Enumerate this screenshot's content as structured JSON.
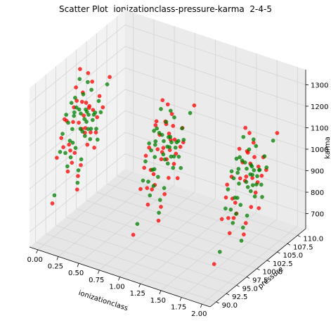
{
  "chart_data": {
    "type": "scatter",
    "title": "Scatter Plot  ionizationclass-pressure-karma  2-4-5",
    "xlabel": "ionizationclass",
    "ylabel": "pressure",
    "zlabel": "karma",
    "xlim": [
      -0.1,
      2.1
    ],
    "ylim": [
      88.5,
      112.0
    ],
    "zlim": [
      630,
      1370
    ],
    "x_ticks": [
      "0.00",
      "0.25",
      "0.50",
      "0.75",
      "1.00",
      "1.25",
      "1.50",
      "1.75",
      "2.00"
    ],
    "y_ticks": [
      "90.0",
      "92.5",
      "95.0",
      "97.5",
      "100.0",
      "102.5",
      "105.0",
      "107.5",
      "110.0"
    ],
    "z_ticks": [
      "700",
      "800",
      "900",
      "1000",
      "1100",
      "1200",
      "1300"
    ],
    "grid": true,
    "projection": "3d",
    "series": [
      {
        "color": "#ff0000",
        "points": [
          [
            0,
            98.6,
            1065
          ],
          [
            0,
            101.2,
            1102
          ],
          [
            0,
            96.5,
            968
          ],
          [
            0,
            103.1,
            1021
          ],
          [
            0,
            99.4,
            1150
          ],
          [
            0,
            94.8,
            1010
          ],
          [
            0,
            100.7,
            930
          ],
          [
            0,
            97.9,
            1240
          ],
          [
            0,
            102.4,
            890
          ],
          [
            0,
            95.6,
            1120
          ],
          [
            0,
            99.8,
            1080
          ],
          [
            0,
            98.1,
            1175
          ],
          [
            0,
            104.5,
            1045
          ],
          [
            0,
            93.2,
            985
          ],
          [
            0,
            100.2,
            1015
          ],
          [
            0,
            101.9,
            1205
          ],
          [
            0,
            96.9,
            905
          ],
          [
            0,
            99.1,
            860
          ],
          [
            0,
            97.2,
            1090
          ],
          [
            0,
            102.8,
            955
          ],
          [
            0,
            95.1,
            1135
          ],
          [
            0,
            100.9,
            1260
          ],
          [
            0,
            98.4,
            820
          ],
          [
            0,
            103.7,
            1110
          ],
          [
            0,
            96.2,
            1000
          ],
          [
            0,
            99.6,
            1190
          ],
          [
            0,
            101.5,
            975
          ],
          [
            0,
            94.3,
            1060
          ],
          [
            0,
            97.6,
            940
          ],
          [
            0,
            100.4,
            1130
          ],
          [
            0,
            92.1,
            790
          ],
          [
            0,
            106.2,
            1160
          ],
          [
            0,
            98.9,
            1310
          ],
          [
            0,
            95.9,
            880
          ],
          [
            0,
            102.1,
            1070
          ],
          [
            0,
            99.3,
            1025
          ],
          [
            0,
            101.1,
            1095
          ],
          [
            0,
            97.4,
            1155
          ],
          [
            0,
            100.1,
            995
          ],
          [
            0,
            98.2,
            760
          ],
          [
            1,
            98.9,
            1050
          ],
          [
            1,
            101.6,
            1130
          ],
          [
            1,
            96.8,
            980
          ],
          [
            1,
            103.4,
            1005
          ],
          [
            1,
            99.7,
            1180
          ],
          [
            1,
            95.2,
            940
          ],
          [
            1,
            100.5,
            905
          ],
          [
            1,
            97.5,
            1215
          ],
          [
            1,
            102.7,
            870
          ],
          [
            1,
            94.9,
            1095
          ],
          [
            1,
            99.2,
            1065
          ],
          [
            1,
            98.3,
            1140
          ],
          [
            1,
            104.1,
            1015
          ],
          [
            1,
            93.6,
            960
          ],
          [
            1,
            100.8,
            1030
          ],
          [
            1,
            101.3,
            1190
          ],
          [
            1,
            96.4,
            915
          ],
          [
            1,
            99.5,
            845
          ],
          [
            1,
            97.8,
            1080
          ],
          [
            1,
            102.3,
            990
          ],
          [
            1,
            95.7,
            1120
          ],
          [
            1,
            100.3,
            1250
          ],
          [
            1,
            98.6,
            800
          ],
          [
            1,
            103.9,
            1085
          ],
          [
            1,
            96.1,
            1010
          ],
          [
            1,
            99.9,
            1165
          ],
          [
            1,
            101.8,
            950
          ],
          [
            1,
            94.5,
            1045
          ],
          [
            1,
            97.1,
            925
          ],
          [
            1,
            100.6,
            1110
          ],
          [
            1,
            91.8,
            775
          ],
          [
            1,
            106.8,
            1145
          ],
          [
            1,
            99.0,
            1290
          ],
          [
            1,
            95.4,
            860
          ],
          [
            1,
            102.0,
            1060
          ],
          [
            1,
            98.7,
            1020
          ],
          [
            1,
            101.0,
            1075
          ],
          [
            1,
            97.3,
            1200
          ],
          [
            1,
            100.0,
            1000
          ],
          [
            1,
            98.0,
            745
          ],
          [
            2,
            99.1,
            1040
          ],
          [
            2,
            101.4,
            1115
          ],
          [
            2,
            96.7,
            975
          ],
          [
            2,
            103.2,
            1000
          ],
          [
            2,
            99.6,
            1170
          ],
          [
            2,
            95.0,
            930
          ],
          [
            2,
            100.6,
            895
          ],
          [
            2,
            97.7,
            1210
          ],
          [
            2,
            102.5,
            860
          ],
          [
            2,
            94.7,
            1090
          ],
          [
            2,
            99.4,
            1055
          ],
          [
            2,
            98.5,
            1135
          ],
          [
            2,
            104.3,
            1010
          ],
          [
            2,
            93.4,
            950
          ],
          [
            2,
            100.9,
            1025
          ],
          [
            2,
            101.2,
            1185
          ],
          [
            2,
            96.3,
            910
          ],
          [
            2,
            99.3,
            840
          ],
          [
            2,
            97.9,
            1070
          ],
          [
            2,
            102.2,
            985
          ],
          [
            2,
            95.8,
            1110
          ],
          [
            2,
            100.2,
            1245
          ],
          [
            2,
            98.8,
            795
          ],
          [
            2,
            103.6,
            1080
          ],
          [
            2,
            96.0,
            1005
          ],
          [
            2,
            99.8,
            1160
          ],
          [
            2,
            101.7,
            945
          ],
          [
            2,
            94.4,
            1035
          ],
          [
            2,
            97.0,
            920
          ],
          [
            2,
            100.4,
            1100
          ],
          [
            2,
            91.5,
            770
          ],
          [
            2,
            107.0,
            1140
          ],
          [
            2,
            99.2,
            1285
          ],
          [
            2,
            95.3,
            855
          ],
          [
            2,
            102.4,
            1055
          ]
        ]
      },
      {
        "color": "#008000",
        "points": [
          [
            0,
            99.0,
            1030
          ],
          [
            0,
            100.6,
            1085
          ],
          [
            0,
            97.1,
            995
          ],
          [
            0,
            102.6,
            1050
          ],
          [
            0,
            98.7,
            1125
          ],
          [
            0,
            95.3,
            975
          ],
          [
            0,
            101.4,
            945
          ],
          [
            0,
            97.7,
            1195
          ],
          [
            0,
            103.2,
            915
          ],
          [
            0,
            96.0,
            1105
          ],
          [
            0,
            100.0,
            1060
          ],
          [
            0,
            98.0,
            1145
          ],
          [
            0,
            104.0,
            1030
          ],
          [
            0,
            94.0,
            1000
          ],
          [
            0,
            100.5,
            1040
          ],
          [
            0,
            101.7,
            1170
          ],
          [
            0,
            96.6,
            935
          ],
          [
            0,
            99.2,
            885
          ],
          [
            0,
            97.4,
            1115
          ],
          [
            0,
            102.9,
            970
          ],
          [
            0,
            95.5,
            1150
          ],
          [
            0,
            100.8,
            1220
          ],
          [
            0,
            98.5,
            845
          ],
          [
            0,
            103.5,
            1090
          ],
          [
            0,
            96.4,
            1015
          ],
          [
            0,
            99.7,
            1180
          ],
          [
            0,
            101.6,
            990
          ],
          [
            0,
            94.6,
            1075
          ],
          [
            0,
            97.8,
            960
          ],
          [
            0,
            100.3,
            1100
          ],
          [
            0,
            92.6,
            820
          ],
          [
            0,
            105.6,
            1135
          ],
          [
            0,
            98.8,
            1265
          ],
          [
            0,
            95.8,
            905
          ],
          [
            0,
            102.3,
            1045
          ],
          [
            0,
            99.5,
            1010
          ],
          [
            0,
            101.0,
            1065
          ],
          [
            0,
            97.5,
            1130
          ],
          [
            0,
            100.1,
            980
          ],
          [
            0,
            98.3,
            790
          ],
          [
            0,
            96.8,
            1185
          ],
          [
            0,
            100.9,
            1000
          ],
          [
            0,
            99.1,
            1100
          ],
          [
            0,
            102.0,
            1025
          ],
          [
            0,
            97.0,
            1060
          ],
          [
            1,
            99.2,
            1035
          ],
          [
            1,
            100.9,
            1090
          ],
          [
            1,
            97.0,
            1000
          ],
          [
            1,
            102.9,
            1040
          ],
          [
            1,
            98.9,
            1130
          ],
          [
            1,
            95.5,
            965
          ],
          [
            1,
            101.6,
            935
          ],
          [
            1,
            97.6,
            1180
          ],
          [
            1,
            103.5,
            905
          ],
          [
            1,
            96.2,
            1100
          ],
          [
            1,
            100.2,
            1055
          ],
          [
            1,
            98.2,
            1150
          ],
          [
            1,
            104.2,
            1025
          ],
          [
            1,
            94.2,
            990
          ],
          [
            1,
            100.7,
            1045
          ],
          [
            1,
            101.9,
            1165
          ],
          [
            1,
            96.8,
            925
          ],
          [
            1,
            99.4,
            875
          ],
          [
            1,
            97.2,
            1110
          ],
          [
            1,
            103.0,
            965
          ],
          [
            1,
            95.7,
            1140
          ],
          [
            1,
            101.0,
            1210
          ],
          [
            1,
            98.4,
            835
          ],
          [
            1,
            103.8,
            1085
          ],
          [
            1,
            96.5,
            1005
          ],
          [
            1,
            99.9,
            1175
          ],
          [
            1,
            101.8,
            985
          ],
          [
            1,
            94.8,
            1070
          ],
          [
            1,
            97.9,
            950
          ],
          [
            1,
            100.5,
            1095
          ],
          [
            1,
            92.8,
            810
          ],
          [
            1,
            105.8,
            1125
          ],
          [
            1,
            98.6,
            1255
          ],
          [
            1,
            95.9,
            895
          ],
          [
            1,
            102.5,
            1040
          ],
          [
            1,
            99.6,
            1005
          ],
          [
            1,
            101.2,
            1060
          ],
          [
            1,
            97.3,
            1125
          ],
          [
            1,
            100.3,
            975
          ],
          [
            1,
            98.1,
            780
          ],
          [
            1,
            96.9,
            1180
          ],
          [
            1,
            101.1,
            995
          ],
          [
            1,
            99.3,
            1095
          ],
          [
            1,
            102.2,
            1020
          ],
          [
            1,
            97.1,
            1055
          ],
          [
            2,
            99.4,
            1030
          ],
          [
            2,
            100.8,
            1080
          ],
          [
            2,
            97.2,
            990
          ],
          [
            2,
            102.7,
            1035
          ],
          [
            2,
            99.1,
            1125
          ],
          [
            2,
            95.6,
            960
          ],
          [
            2,
            101.5,
            930
          ],
          [
            2,
            97.8,
            1170
          ],
          [
            2,
            103.3,
            900
          ],
          [
            2,
            96.3,
            1095
          ],
          [
            2,
            100.4,
            1050
          ],
          [
            2,
            98.4,
            1145
          ],
          [
            2,
            104.4,
            1020
          ],
          [
            2,
            94.3,
            985
          ],
          [
            2,
            100.9,
            1040
          ],
          [
            2,
            101.8,
            1160
          ],
          [
            2,
            96.9,
            920
          ],
          [
            2,
            99.6,
            870
          ],
          [
            2,
            97.3,
            1105
          ],
          [
            2,
            103.1,
            960
          ],
          [
            2,
            95.8,
            1135
          ],
          [
            2,
            101.2,
            1200
          ],
          [
            2,
            98.6,
            830
          ],
          [
            2,
            103.9,
            1080
          ],
          [
            2,
            96.6,
            1000
          ],
          [
            2,
            100.1,
            1170
          ],
          [
            2,
            101.9,
            980
          ],
          [
            2,
            94.9,
            1065
          ],
          [
            2,
            98.0,
            945
          ],
          [
            2,
            100.6,
            1090
          ],
          [
            2,
            92.9,
            805
          ],
          [
            2,
            106.0,
            1120
          ],
          [
            2,
            98.7,
            1250
          ],
          [
            2,
            96.1,
            890
          ],
          [
            2,
            102.6,
            1035
          ],
          [
            2,
            99.8,
            1000
          ],
          [
            2,
            101.3,
            1055
          ],
          [
            2,
            97.5,
            1120
          ],
          [
            2,
            100.5,
            970
          ],
          [
            2,
            98.2,
            775
          ],
          [
            2,
            97.0,
            1175
          ],
          [
            2,
            101.0,
            990
          ],
          [
            2,
            99.5,
            1090
          ],
          [
            2,
            102.1,
            1015
          ],
          [
            2,
            97.6,
            1050
          ]
        ]
      }
    ]
  }
}
